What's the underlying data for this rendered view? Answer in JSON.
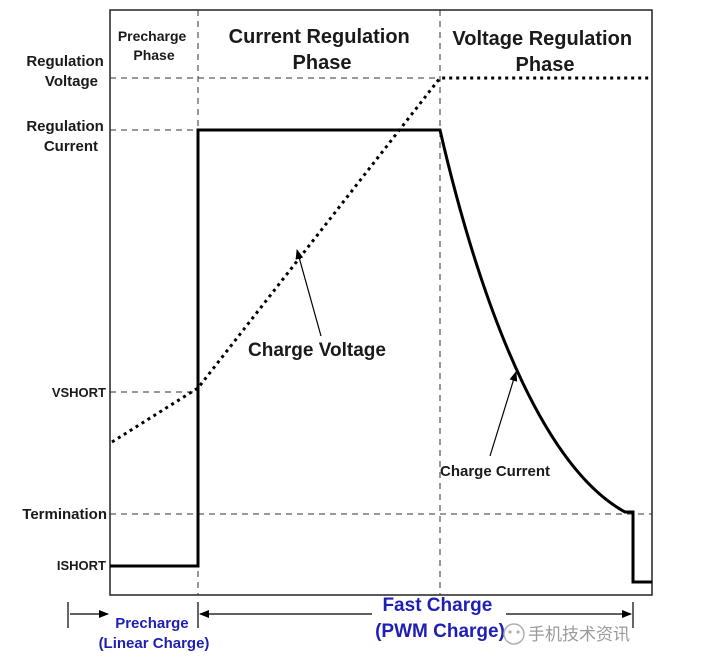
{
  "phases": {
    "precharge": [
      "Precharge",
      "Phase"
    ],
    "current_regulation": [
      "Current Regulation",
      "Phase"
    ],
    "voltage_regulation": [
      "Voltage Regulation",
      "Phase"
    ]
  },
  "y_labels": {
    "regulation_voltage": [
      "Regulation",
      "Voltage"
    ],
    "regulation_current": [
      "Regulation",
      "Current"
    ],
    "vshort": "VSHORT",
    "termination": "Termination",
    "ishort": "ISHORT"
  },
  "annotations": {
    "charge_voltage": "Charge Voltage",
    "charge_current": "Charge Current"
  },
  "bottom": {
    "precharge": [
      "Precharge",
      "(Linear Charge)"
    ],
    "fast_charge": [
      "Fast Charge",
      "(PWM Charge)"
    ]
  },
  "watermark": "手机技术资讯",
  "colors": {
    "curve": "#000000",
    "accent_text": "#1f1fb4",
    "watermark": "#9a9a9a"
  }
}
